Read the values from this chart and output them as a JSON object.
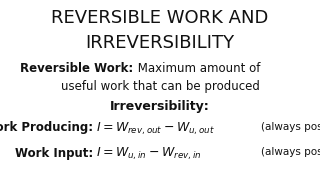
{
  "bg_color": "#ffffff",
  "title_line1": "REVERSIBLE WORK AND",
  "title_line2": "IRREVERSIBILITY",
  "title_fontsize": 13,
  "title_color": "#111111",
  "rev_work_bold": "Reversible Work:",
  "rev_work_rest": " Maximum amount of",
  "rev_work_rest2": "useful work that can be produced",
  "rev_work_fontsize": 8.5,
  "irrev_label": "Irreversibility:",
  "irrev_fontsize": 9,
  "wp_label": "Work Producing:",
  "wp_always": "(always positive)",
  "wi_label": "Work Input:",
  "wi_always": "(always positive)",
  "formula_fontsize": 9,
  "label_fontsize": 8.5
}
